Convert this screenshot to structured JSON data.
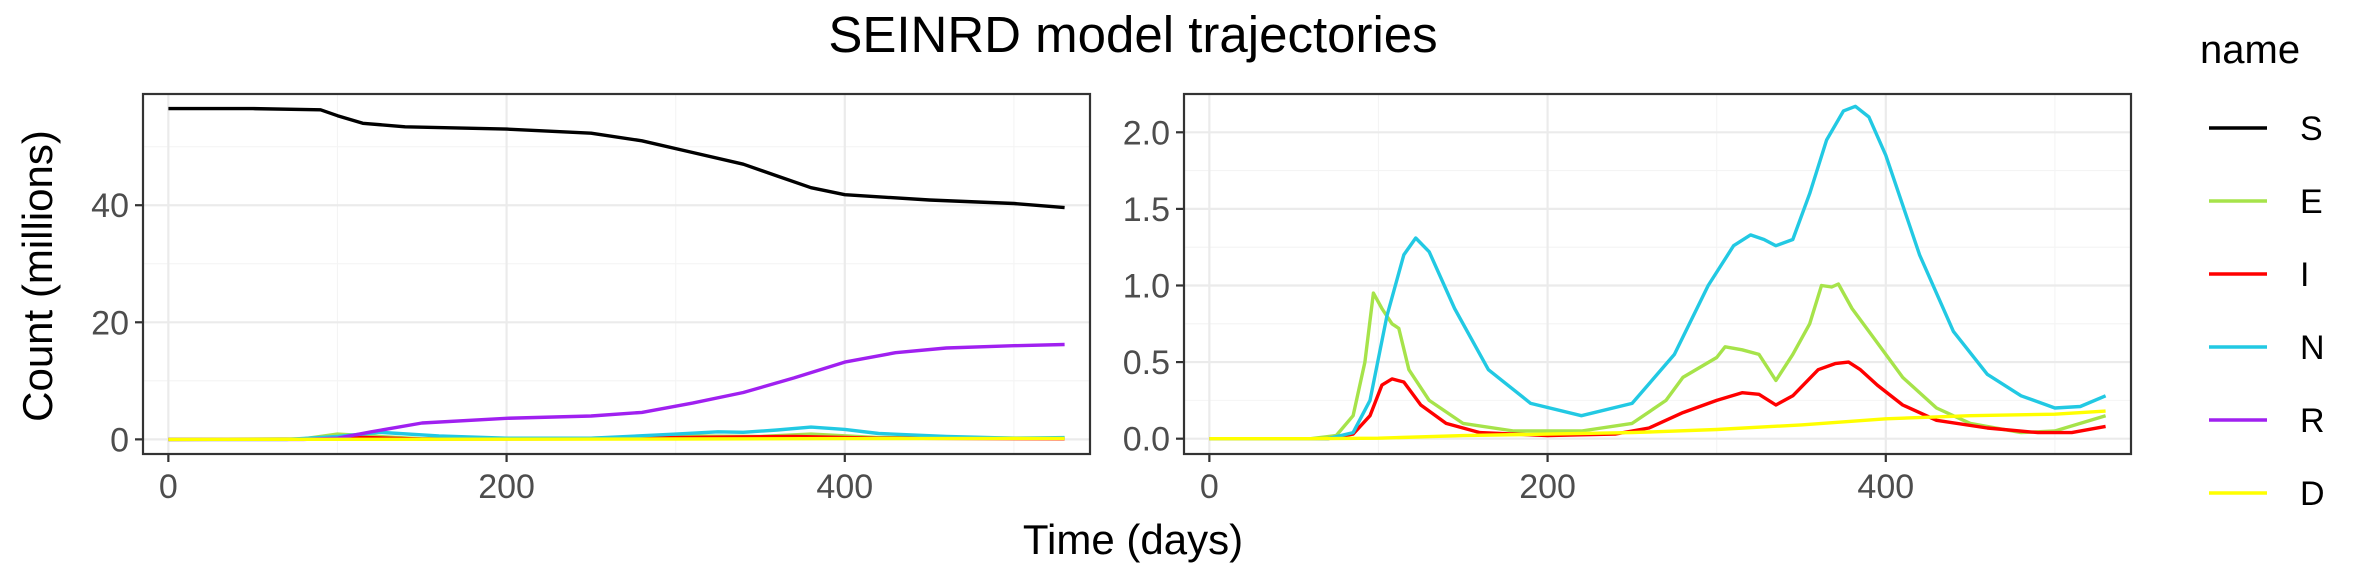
{
  "chart_data": {
    "type": "line",
    "title": "SEINRD model trajectories",
    "xlabel": "Time (days)",
    "ylabel": "Count (millions)",
    "legend": {
      "title": "name",
      "position": "right",
      "items": [
        {
          "name": "S",
          "color": "#000000"
        },
        {
          "name": "E",
          "color": "#a6e34a"
        },
        {
          "name": "I",
          "color": "#ff0000"
        },
        {
          "name": "N",
          "color": "#22c9e3"
        },
        {
          "name": "R",
          "color": "#a020f0"
        },
        {
          "name": "D",
          "color": "#ffff00"
        }
      ]
    },
    "panels": [
      {
        "id": "left",
        "xlim": [
          -15,
          545
        ],
        "ylim": [
          -2.5,
          59
        ],
        "xticks": [
          0,
          200,
          400
        ],
        "yticks": [
          0,
          20,
          40
        ],
        "yticklabels": [
          "0",
          "20",
          "40"
        ],
        "grid": true,
        "series": [
          {
            "name": "S",
            "x": [
              0,
              50,
              90,
              100,
              115,
              140,
              200,
              250,
              280,
              310,
              340,
              360,
              380,
              400,
              450,
              500,
              530
            ],
            "y": [
              56.5,
              56.5,
              56.3,
              55.3,
              54.0,
              53.4,
              53.0,
              52.3,
              51.0,
              49.0,
              47.0,
              45.0,
              43.0,
              41.8,
              40.9,
              40.3,
              39.6
            ]
          },
          {
            "name": "E",
            "x": [
              0,
              80,
              100,
              150,
              250,
              300,
              350,
              380,
              420,
              530
            ],
            "y": [
              0,
              0.1,
              0.9,
              0.1,
              0.2,
              0.6,
              0.5,
              0.9,
              0.3,
              0.2
            ]
          },
          {
            "name": "I",
            "x": [
              0,
              80,
              105,
              150,
              250,
              300,
              370,
              420,
              530
            ],
            "y": [
              0,
              0.05,
              0.4,
              0.05,
              0.1,
              0.3,
              0.5,
              0.2,
              0.1
            ]
          },
          {
            "name": "N",
            "x": [
              0,
              70,
              100,
              125,
              160,
              200,
              250,
              300,
              325,
              340,
              360,
              380,
              400,
              420,
              460,
              500,
              530
            ],
            "y": [
              0,
              0,
              0.5,
              1.2,
              0.6,
              0.2,
              0.2,
              0.9,
              1.3,
              1.2,
              1.6,
              2.1,
              1.7,
              1.0,
              0.5,
              0.2,
              0.3
            ]
          },
          {
            "name": "R",
            "x": [
              0,
              80,
              100,
              120,
              150,
              200,
              250,
              280,
              310,
              340,
              370,
              400,
              430,
              460,
              500,
              530
            ],
            "y": [
              0,
              0,
              0.2,
              1.3,
              2.8,
              3.6,
              4.0,
              4.6,
              6.2,
              8.0,
              10.5,
              13.2,
              14.8,
              15.6,
              16.0,
              16.2
            ]
          },
          {
            "name": "D",
            "x": [
              0,
              100,
              200,
              300,
              400,
              530
            ],
            "y": [
              0,
              0.01,
              0.03,
              0.06,
              0.13,
              0.17
            ]
          }
        ]
      },
      {
        "id": "right",
        "xlim": [
          -15,
          545
        ],
        "ylim": [
          -0.1,
          2.25
        ],
        "xticks": [
          0,
          200,
          400
        ],
        "yticks": [
          0.0,
          0.5,
          1.0,
          1.5,
          2.0
        ],
        "yticklabels": [
          "0.0",
          "0.5",
          "1.0",
          "1.5",
          "2.0"
        ],
        "grid": true,
        "series": [
          {
            "name": "E",
            "x": [
              0,
              60,
              75,
              85,
              92,
              97,
              102,
              108,
              112,
              118,
              130,
              150,
              180,
              220,
              250,
              270,
              280,
              300,
              305,
              315,
              325,
              335,
              345,
              355,
              362,
              368,
              372,
              380,
              390,
              410,
              430,
              450,
              480,
              500,
              530
            ],
            "y": [
              0,
              0,
              0.02,
              0.15,
              0.5,
              0.95,
              0.85,
              0.75,
              0.72,
              0.45,
              0.25,
              0.1,
              0.05,
              0.05,
              0.1,
              0.25,
              0.4,
              0.53,
              0.6,
              0.58,
              0.55,
              0.38,
              0.55,
              0.75,
              1.0,
              0.99,
              1.01,
              0.85,
              0.7,
              0.4,
              0.2,
              0.1,
              0.04,
              0.05,
              0.15
            ]
          },
          {
            "name": "I",
            "x": [
              0,
              70,
              85,
              95,
              102,
              108,
              115,
              125,
              140,
              160,
              200,
              240,
              260,
              280,
              300,
              315,
              325,
              335,
              345,
              360,
              370,
              378,
              385,
              395,
              410,
              430,
              460,
              490,
              510,
              530
            ],
            "y": [
              0,
              0,
              0.03,
              0.15,
              0.35,
              0.39,
              0.37,
              0.22,
              0.1,
              0.04,
              0.02,
              0.03,
              0.07,
              0.17,
              0.25,
              0.3,
              0.29,
              0.22,
              0.28,
              0.45,
              0.49,
              0.5,
              0.45,
              0.35,
              0.22,
              0.12,
              0.07,
              0.04,
              0.04,
              0.08
            ]
          },
          {
            "name": "N",
            "x": [
              0,
              70,
              85,
              95,
              105,
              115,
              122,
              130,
              145,
              165,
              190,
              220,
              250,
              275,
              295,
              310,
              320,
              328,
              335,
              345,
              355,
              365,
              375,
              382,
              390,
              400,
              420,
              440,
              460,
              480,
              500,
              515,
              530
            ],
            "y": [
              0,
              0,
              0.04,
              0.25,
              0.8,
              1.2,
              1.31,
              1.22,
              0.85,
              0.45,
              0.23,
              0.15,
              0.23,
              0.55,
              1.0,
              1.26,
              1.33,
              1.3,
              1.26,
              1.3,
              1.6,
              1.95,
              2.14,
              2.17,
              2.1,
              1.85,
              1.2,
              0.7,
              0.42,
              0.28,
              0.2,
              0.21,
              0.28
            ]
          },
          {
            "name": "D",
            "x": [
              0,
              60,
              100,
              150,
              200,
              250,
              300,
              350,
              400,
              450,
              500,
              530
            ],
            "y": [
              0,
              0,
              0.003,
              0.02,
              0.03,
              0.04,
              0.06,
              0.09,
              0.13,
              0.15,
              0.16,
              0.18
            ]
          }
        ]
      }
    ]
  }
}
